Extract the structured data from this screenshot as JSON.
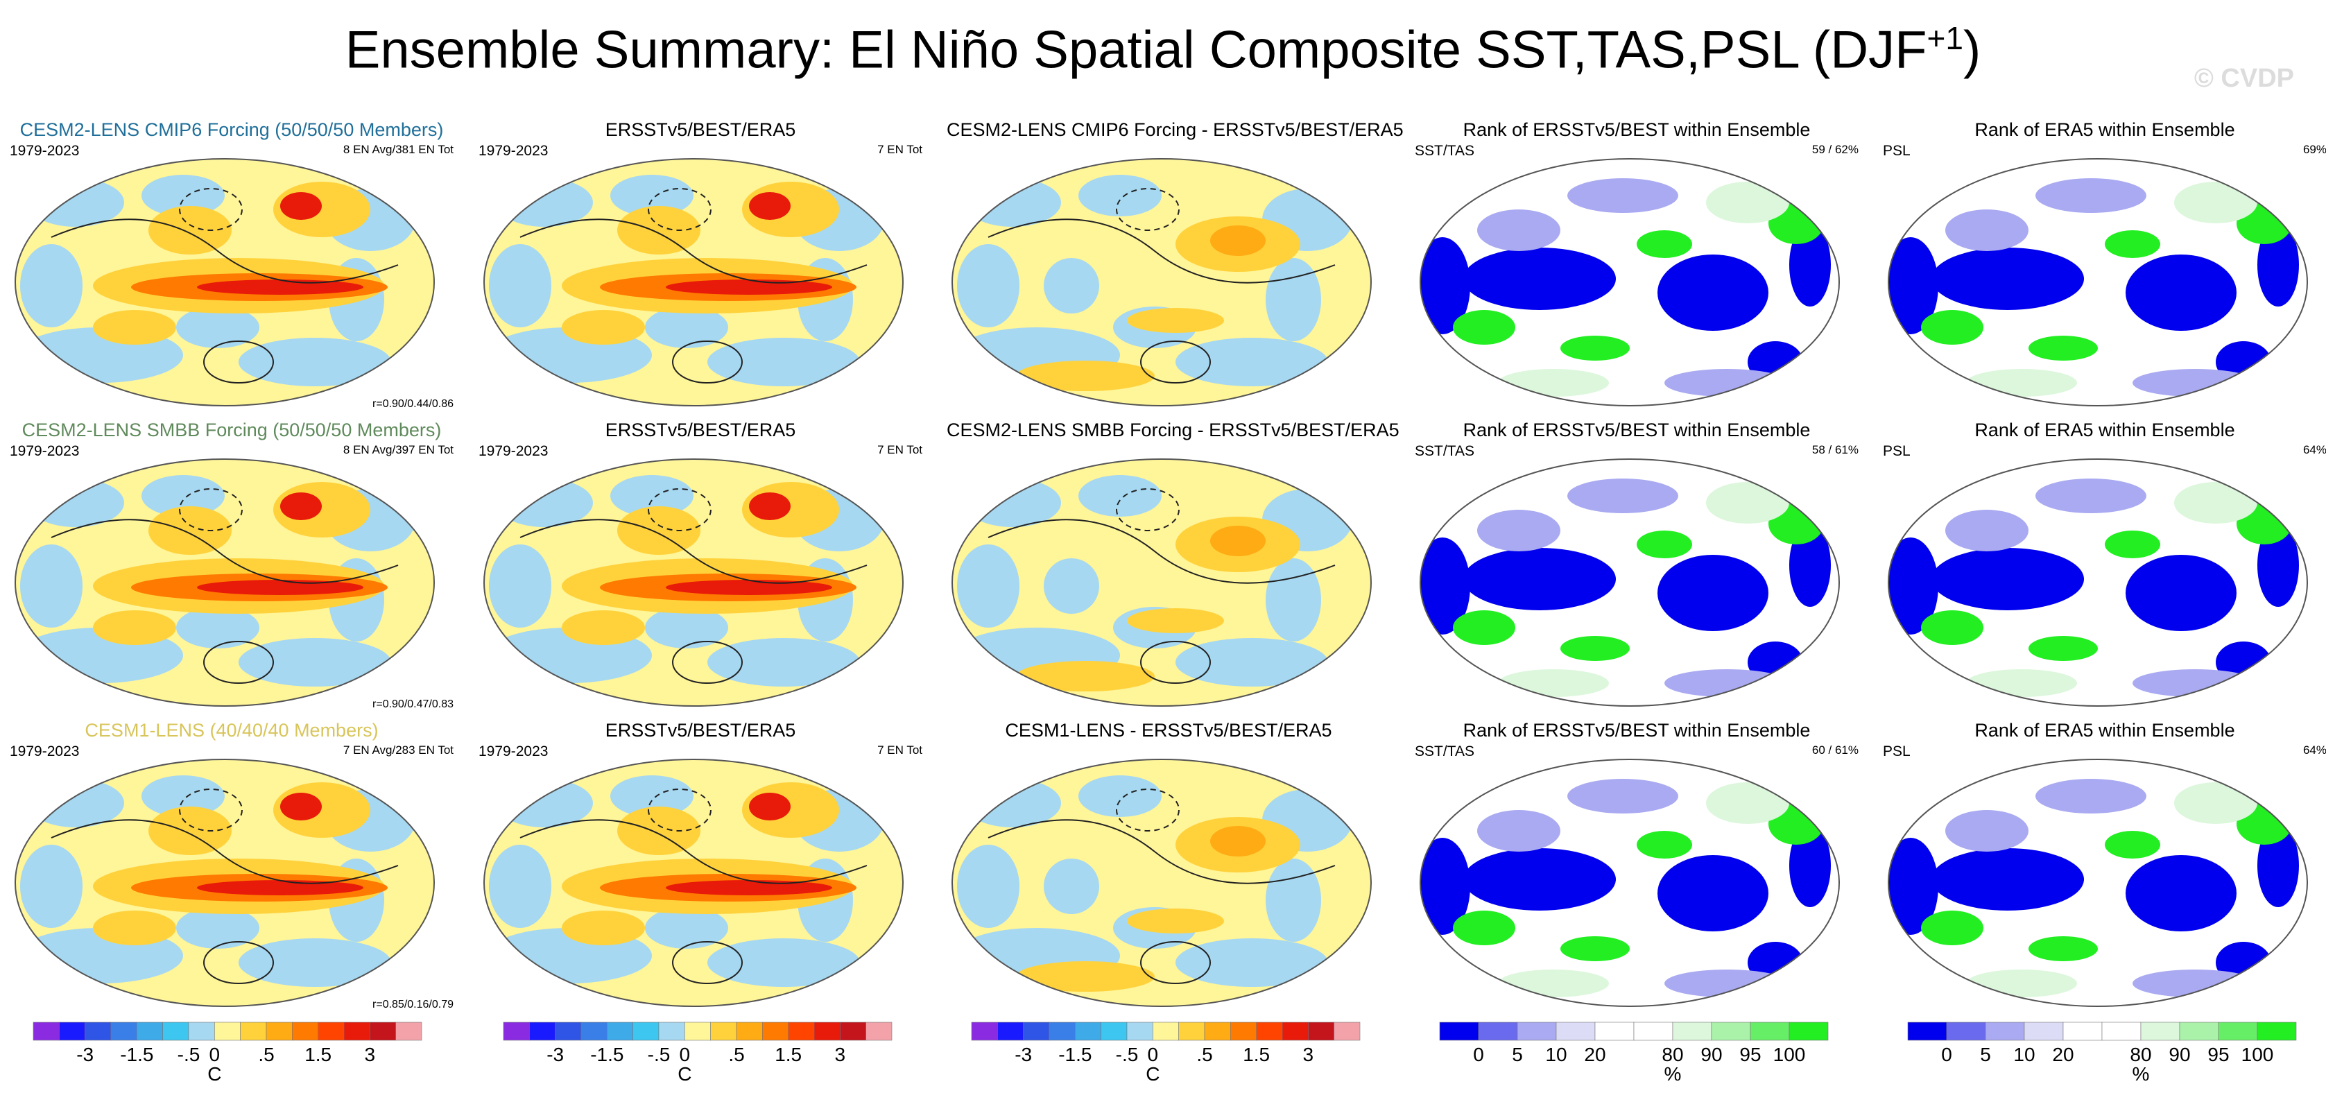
{
  "header": {
    "title": "Ensemble Summary: El Niño Spatial Composite SST,TAS,PSL (DJF",
    "title_sup": "+1",
    "title_close": ")",
    "watermark": "© CVDP"
  },
  "colors": {
    "cmip6": "#1f6f9a",
    "smbb": "#5f8a5b",
    "cesm1": "#d8c55a",
    "land_white": "#ffffff",
    "rank_blue": "#0000ee",
    "rank_green": "#22ee22"
  },
  "rows": [
    {
      "model": {
        "title": "CESM2-LENS CMIP6 Forcing (50/50/50 Members)",
        "color_key": "cmip6",
        "years": "1979-2023",
        "info": "8 EN Avg/381 EN Tot",
        "corr": "r=0.90/0.44/0.86"
      },
      "obs": {
        "title": "ERSSTv5/BEST/ERA5",
        "years": "1979-2023",
        "info": "7 EN Tot"
      },
      "diff": {
        "title": "CESM2-LENS CMIP6 Forcing - ERSSTv5/BEST/ERA5"
      },
      "rank_sst": {
        "title": "Rank of ERSSTv5/BEST within Ensemble",
        "left": "SST/TAS",
        "right": "59 /  62%"
      },
      "rank_psl": {
        "title": "Rank of ERA5 within Ensemble",
        "left": "PSL",
        "right": "69%"
      }
    },
    {
      "model": {
        "title": "CESM2-LENS SMBB Forcing (50/50/50 Members)",
        "color_key": "smbb",
        "years": "1979-2023",
        "info": "8 EN Avg/397 EN Tot",
        "corr": "r=0.90/0.47/0.83"
      },
      "obs": {
        "title": "ERSSTv5/BEST/ERA5",
        "years": "1979-2023",
        "info": "7 EN Tot"
      },
      "diff": {
        "title": "CESM2-LENS SMBB Forcing - ERSSTv5/BEST/ERA5"
      },
      "rank_sst": {
        "title": "Rank of ERSSTv5/BEST within Ensemble",
        "left": "SST/TAS",
        "right": "58 /  61%"
      },
      "rank_psl": {
        "title": "Rank of ERA5 within Ensemble",
        "left": "PSL",
        "right": "64%"
      }
    },
    {
      "model": {
        "title": "CESM1-LENS (40/40/40 Members)",
        "color_key": "cesm1",
        "years": "1979-2023",
        "info": "7 EN Avg/283 EN Tot",
        "corr": "r=0.85/0.16/0.79"
      },
      "obs": {
        "title": "ERSSTv5/BEST/ERA5",
        "years": "1979-2023",
        "info": "7 EN Tot"
      },
      "diff": {
        "title": "CESM1-LENS - ERSSTv5/BEST/ERA5"
      },
      "rank_sst": {
        "title": "Rank of ERSSTv5/BEST within Ensemble",
        "left": "SST/TAS",
        "right": "60 /  61%"
      },
      "rank_psl": {
        "title": "Rank of ERA5 within Ensemble",
        "left": "PSL",
        "right": "64%"
      }
    }
  ],
  "chart_data": {
    "type": "heatmap",
    "title": "Ensemble Summary: El Niño Spatial Composite SST,TAS,PSL (DJF+1)",
    "temperature_colorbar": {
      "unit": "C",
      "colors": [
        "#8a2be2",
        "#1a1aff",
        "#2f55e6",
        "#3a7fe8",
        "#3faae8",
        "#3cc6f0",
        "#a6d8f2",
        "#fff599",
        "#ffd23c",
        "#ffab14",
        "#ff7a00",
        "#ff4400",
        "#e81a0a",
        "#c4141c",
        "#f4a2aa"
      ],
      "tick_labels": [
        "-3",
        "-1.5",
        "-.5",
        "0",
        ".5",
        "1.5",
        "3"
      ],
      "tick_boundaries": [
        2,
        4,
        6,
        7,
        9,
        11,
        13
      ]
    },
    "rank_colorbar": {
      "unit": "%",
      "colors": [
        "#0000ee",
        "#6a6aee",
        "#aaaaf2",
        "#dcdcf7",
        "#ffffff",
        "#ffffff",
        "#dcf7dc",
        "#aaf2aa",
        "#66ee66",
        "#22ee22"
      ],
      "tick_labels": [
        "0",
        "5",
        "10",
        "20",
        "80",
        "90",
        "95",
        "100"
      ],
      "tick_boundaries": [
        1,
        2,
        3,
        4,
        6,
        7,
        8,
        9
      ]
    }
  }
}
